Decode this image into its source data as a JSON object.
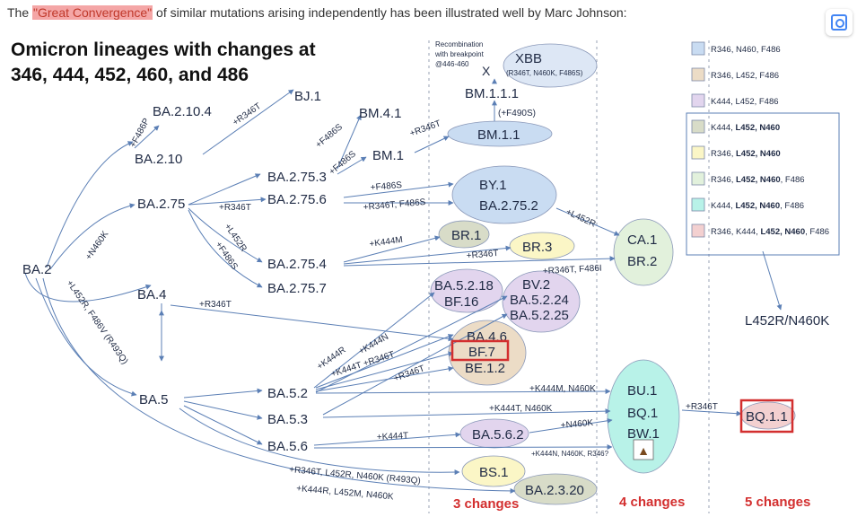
{
  "caption": {
    "before": "The ",
    "highlight": "\"Great Convergence\"",
    "after": " of similar mutations arising independently has been illustrated well by Marc Johnson:"
  },
  "heading": {
    "line1": "Omicron lineages with changes at",
    "line2": "346, 444, 452, 460, and 486"
  },
  "recombination_note": [
    "Recombination",
    "with breakpoint",
    "@446-460"
  ],
  "recombination_marker": "X",
  "lineages": {
    "ba2": "BA.2",
    "ba2_10_4": "BA.2.10.4",
    "ba2_10": "BA.2.10",
    "bj1": "BJ.1",
    "ba2_75": "BA.2.75",
    "bm4_1": "BM.4.1",
    "bm1": "BM.1",
    "ba2_75_3": "BA.2.75.3",
    "ba2_75_6": "BA.2.75.6",
    "ba2_75_4": "BA.2.75.4",
    "ba2_75_7": "BA.2.75.7",
    "ba4": "BA.4",
    "ba5": "BA.5",
    "ba5_2": "BA.5.2",
    "ba5_3": "BA.5.3",
    "ba5_6": "BA.5.6",
    "xbb": "XBB",
    "xbb_sub": "(R346T, N460K, F486S)",
    "bm1_1_1": "BM.1.1.1",
    "bm1_1": "BM.1.1",
    "by1": "BY.1",
    "ba2_75_2": "BA.2.75.2",
    "br1": "BR.1",
    "br3": "BR.3",
    "ba5_2_18": "BA.5.2.18",
    "bf16": "BF.16",
    "bv2": "BV.2",
    "ba5_2_24": "BA.5.2.24",
    "ba5_2_25": "BA.5.2.25",
    "ba4_6": "BA.4.6",
    "bf7": "BF.7",
    "be1_2": "BE.1.2",
    "ba5_6_2": "BA.5.6.2",
    "bs1": "BS.1",
    "ba2_3_20": "BA.2.3.20",
    "ca1": "CA.1",
    "br2": "BR.2",
    "bu1": "BU.1",
    "bq1": "BQ.1",
    "bw1": "BW.1",
    "bq1_1": "BQ.1.1",
    "l452r_n460k": "L452R/N460K"
  },
  "mutations": {
    "f486p": "+F486P",
    "n460k": "+N460K",
    "l452r_f486v": "+L452R, F486V (R493Q)",
    "r346t_bj1": "+R346T",
    "f486s_bm41": "+F486S",
    "f486s_bm1": "+F486S",
    "r346t_bm11": "+R346T",
    "f490s": "(+F490S)",
    "r346t_2756": "+R346T",
    "l452r_2754": "+L452R",
    "f486s_2757": "+F486S",
    "f486s_by1": "+F486S",
    "r346t_f486s": "+R346T, F486S",
    "l452r_ca1": "+L452R",
    "k444m": "+K444M",
    "r346t_br3": "+R346T",
    "r346t_f486i": "+R346T, F486I",
    "r346t_ba4": "+R346T",
    "k444r": "+K444R",
    "k444n": "+K444N",
    "k444t_346t": "+K444T  +R346T",
    "r346t_be": "+R346T",
    "k444m_n460k": "+K444M, N460K",
    "k444t_n460k": "+K444T, N460K",
    "n460k_bq": "+N460K",
    "k444t_562": "+K444T",
    "k444n_n460k_r346": "+K444N, N460K, R346?",
    "r346t_l452r_n460k": "+R346T, L452R, N460K (R493Q)",
    "k444r_l452m_n460k": "+K444R, L452M, N460K",
    "r346t_bq11": "+R346T"
  },
  "changes": {
    "three": "3 changes",
    "four": "4 changes",
    "five": "5 changes"
  },
  "legend": [
    {
      "parts": [
        {
          "t": "R346, N460, F486",
          "b": false
        }
      ],
      "color": "#c9dcf2"
    },
    {
      "parts": [
        {
          "t": "R346, L452, F486",
          "b": false
        }
      ],
      "color": "#ecdcc6"
    },
    {
      "parts": [
        {
          "t": "K444, L452, F486",
          "b": false
        }
      ],
      "color": "#e2d5ee"
    },
    {
      "parts": [
        {
          "t": "K444, ",
          "b": false
        },
        {
          "t": "L452, N460",
          "b": true
        }
      ],
      "color": "#d8dcc8"
    },
    {
      "parts": [
        {
          "t": "R346, ",
          "b": false
        },
        {
          "t": "L452, N460",
          "b": true
        }
      ],
      "color": "#fbf6c6"
    },
    {
      "parts": [
        {
          "t": "R346, ",
          "b": false
        },
        {
          "t": "L452, N460",
          "b": true
        },
        {
          "t": ", F486",
          "b": false
        }
      ],
      "color": "#e2f1dc"
    },
    {
      "parts": [
        {
          "t": "K444, ",
          "b": false
        },
        {
          "t": "L452, N460",
          "b": true
        },
        {
          "t": ", F486",
          "b": false
        }
      ],
      "color": "#b8f2e8"
    },
    {
      "parts": [
        {
          "t": "R346, K444, ",
          "b": false
        },
        {
          "t": "L452, N460",
          "b": true
        },
        {
          "t": ", F486",
          "b": false
        }
      ],
      "color": "#f3d0d0"
    }
  ],
  "colors": {
    "arrow": "#5b7fb5",
    "label": "#1f2a44",
    "changes": "#d32f2f",
    "highlight_box": "#d32f2f",
    "xbb_fill": "#dde7f5",
    "by_fill": "#c9dcf2",
    "br1_fill": "#d8dcc8",
    "br3_fill": "#fbf6c6",
    "purple_fill": "#e2d5ee",
    "tan_fill": "#ecdcc6",
    "green_fill": "#e2f1dc",
    "teal_fill": "#b8f2e8",
    "pink_fill": "#f3d0d0"
  }
}
